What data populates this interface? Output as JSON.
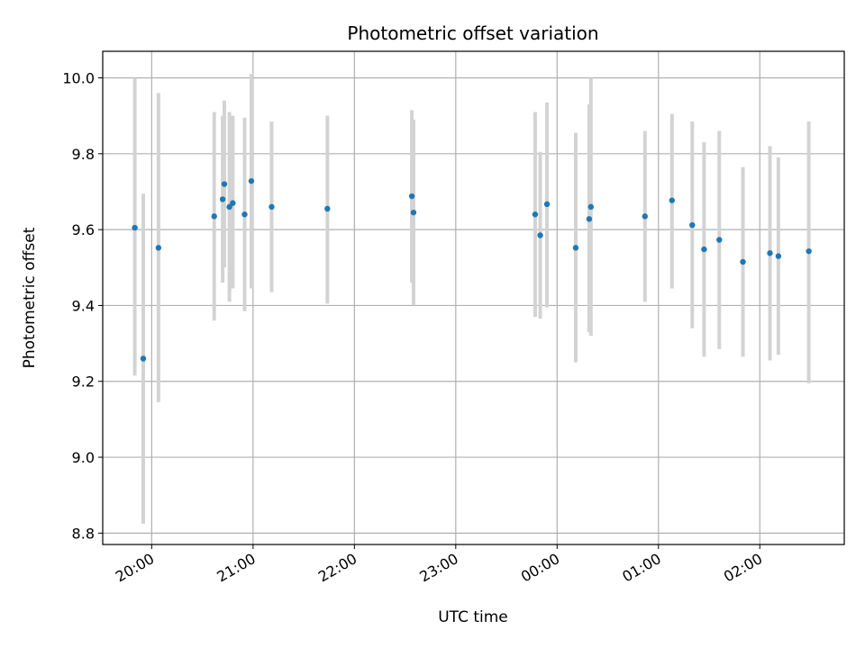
{
  "chart_data": {
    "type": "scatter",
    "title": "Photometric offset variation",
    "xlabel": "UTC time",
    "ylabel": "Photometric offset",
    "grid": true,
    "legend": "none",
    "x_unit": "UTC hours (continuing past midnight)",
    "xlim": [
      "19:31",
      "26:50"
    ],
    "ylim": [
      8.77,
      10.07
    ],
    "x_ticks": [
      "20:00",
      "21:00",
      "22:00",
      "23:00",
      "00:00",
      "01:00",
      "02:00"
    ],
    "y_ticks": [
      "8.8",
      "9.0",
      "9.2",
      "9.4",
      "9.6",
      "9.8",
      "10.0"
    ],
    "point_color": "#1f77b4",
    "errorbar_color": "#d3d3d3",
    "series": [
      {
        "points": [
          {
            "t": "19:50",
            "y": 9.605,
            "lo": 9.215,
            "hi": 10.0
          },
          {
            "t": "19:55",
            "y": 9.26,
            "lo": 8.825,
            "hi": 9.695
          },
          {
            "t": "20:04",
            "y": 9.552,
            "lo": 9.145,
            "hi": 9.96
          },
          {
            "t": "20:37",
            "y": 9.635,
            "lo": 9.36,
            "hi": 9.91
          },
          {
            "t": "20:42",
            "y": 9.68,
            "lo": 9.46,
            "hi": 9.9
          },
          {
            "t": "20:43",
            "y": 9.72,
            "lo": 9.5,
            "hi": 9.94
          },
          {
            "t": "20:46",
            "y": 9.66,
            "lo": 9.41,
            "hi": 9.91
          },
          {
            "t": "20:48",
            "y": 9.67,
            "lo": 9.445,
            "hi": 9.9
          },
          {
            "t": "20:55",
            "y": 9.64,
            "lo": 9.385,
            "hi": 9.895
          },
          {
            "t": "20:59",
            "y": 9.728,
            "lo": 9.445,
            "hi": 10.01
          },
          {
            "t": "21:11",
            "y": 9.66,
            "lo": 9.435,
            "hi": 9.885
          },
          {
            "t": "21:44",
            "y": 9.655,
            "lo": 9.405,
            "hi": 9.9
          },
          {
            "t": "22:34",
            "y": 9.688,
            "lo": 9.46,
            "hi": 9.915
          },
          {
            "t": "22:35",
            "y": 9.645,
            "lo": 9.4,
            "hi": 9.89
          },
          {
            "t": "23:47",
            "y": 9.64,
            "lo": 9.37,
            "hi": 9.91
          },
          {
            "t": "23:50",
            "y": 9.585,
            "lo": 9.365,
            "hi": 9.805
          },
          {
            "t": "23:54",
            "y": 9.667,
            "lo": 9.395,
            "hi": 9.935
          },
          {
            "t": "24:11",
            "y": 9.552,
            "lo": 9.25,
            "hi": 9.855
          },
          {
            "t": "24:19",
            "y": 9.628,
            "lo": 9.33,
            "hi": 9.93
          },
          {
            "t": "24:20",
            "y": 9.66,
            "lo": 9.32,
            "hi": 10.0
          },
          {
            "t": "24:52",
            "y": 9.635,
            "lo": 9.41,
            "hi": 9.86
          },
          {
            "t": "25:08",
            "y": 9.677,
            "lo": 9.445,
            "hi": 9.905
          },
          {
            "t": "25:20",
            "y": 9.612,
            "lo": 9.34,
            "hi": 9.885
          },
          {
            "t": "25:27",
            "y": 9.548,
            "lo": 9.265,
            "hi": 9.83
          },
          {
            "t": "25:36",
            "y": 9.573,
            "lo": 9.285,
            "hi": 9.86
          },
          {
            "t": "25:50",
            "y": 9.515,
            "lo": 9.265,
            "hi": 9.765
          },
          {
            "t": "26:06",
            "y": 9.538,
            "lo": 9.255,
            "hi": 9.82
          },
          {
            "t": "26:11",
            "y": 9.53,
            "lo": 9.27,
            "hi": 9.79
          },
          {
            "t": "26:29",
            "y": 9.543,
            "lo": 9.195,
            "hi": 9.885
          }
        ]
      }
    ]
  }
}
